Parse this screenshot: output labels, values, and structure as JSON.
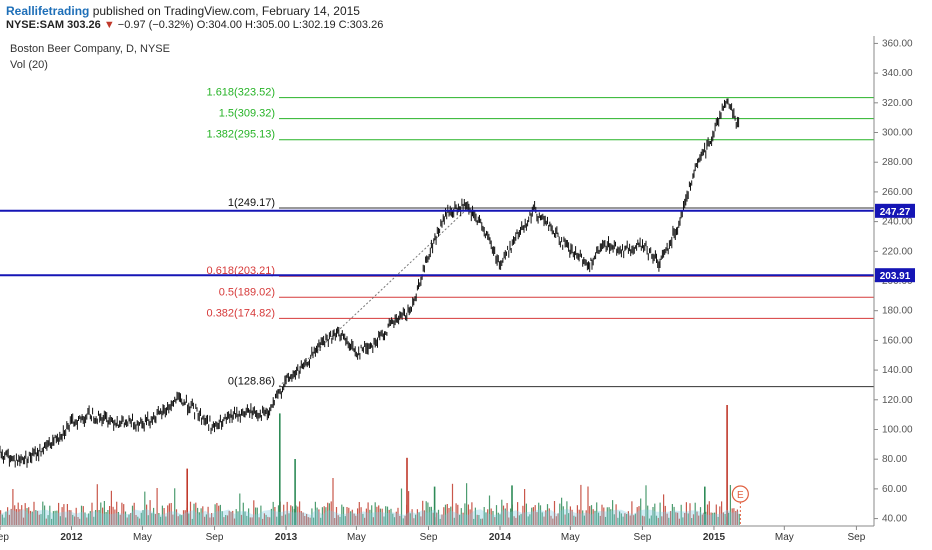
{
  "header": {
    "author": "Reallifetrading",
    "published_text": "published on TradingView.com, February 14, 2015",
    "symbol": "NYSE:SAM",
    "last": "303.26",
    "change": "−0.97 (−0.32%)",
    "ohlc": {
      "open_label": "O:",
      "open": "304.00",
      "high_label": "H:",
      "high": "305.00",
      "low_label": "L:",
      "low": "302.19",
      "close_label": "C:",
      "close": "303.26"
    }
  },
  "legend": {
    "series_title": "Boston Beer Company, D, NYSE",
    "volume_title": "Vol (20)"
  },
  "colors": {
    "fib_green": "#27b327",
    "fib_red": "#d63a3a",
    "fib_black": "#333333",
    "horizontal": "#1515b5",
    "price_tag": "#1515b5",
    "vol_green": "#2e8b57",
    "vol_red": "#c0392b",
    "vol_area": "#7ec8e3",
    "earnings": "#e06040"
  },
  "chart_data": {
    "type": "line",
    "x_type": "date",
    "x_range": [
      "2011-09-01",
      "2015-10-01"
    ],
    "ylim": [
      35,
      365
    ],
    "y_ticks": [
      40,
      60,
      80,
      100,
      120,
      140,
      160,
      180,
      200,
      220,
      240,
      260,
      280,
      300,
      320,
      340,
      360
    ],
    "x_ticks": [
      {
        "date": "2011-09-01",
        "label": "Sep"
      },
      {
        "date": "2012-01-01",
        "label": "2012"
      },
      {
        "date": "2012-05-01",
        "label": "May"
      },
      {
        "date": "2012-09-01",
        "label": "Sep"
      },
      {
        "date": "2013-01-01",
        "label": "2013"
      },
      {
        "date": "2013-05-01",
        "label": "May"
      },
      {
        "date": "2013-09-01",
        "label": "Sep"
      },
      {
        "date": "2014-01-01",
        "label": "2014"
      },
      {
        "date": "2014-05-01",
        "label": "May"
      },
      {
        "date": "2014-09-01",
        "label": "Sep"
      },
      {
        "date": "2015-01-01",
        "label": "2015"
      },
      {
        "date": "2015-05-01",
        "label": "May"
      },
      {
        "date": "2015-09-01",
        "label": "Sep"
      }
    ],
    "price_series": {
      "name": "SAM",
      "points": [
        [
          "2011-09-01",
          84
        ],
        [
          "2011-10-01",
          79
        ],
        [
          "2011-11-01",
          83
        ],
        [
          "2011-12-01",
          92
        ],
        [
          "2012-01-01",
          104
        ],
        [
          "2012-02-01",
          110
        ],
        [
          "2012-03-01",
          107
        ],
        [
          "2012-04-01",
          104
        ],
        [
          "2012-05-01",
          105
        ],
        [
          "2012-06-01",
          110
        ],
        [
          "2012-07-01",
          121
        ],
        [
          "2012-08-01",
          112
        ],
        [
          "2012-09-01",
          101
        ],
        [
          "2012-10-01",
          109
        ],
        [
          "2012-11-01",
          112
        ],
        [
          "2012-12-01",
          110
        ],
        [
          "2013-01-01",
          133
        ],
        [
          "2013-02-01",
          142
        ],
        [
          "2013-03-01",
          158
        ],
        [
          "2013-04-01",
          165
        ],
        [
          "2013-05-01",
          152
        ],
        [
          "2013-06-01",
          158
        ],
        [
          "2013-07-01",
          171
        ],
        [
          "2013-08-01",
          180
        ],
        [
          "2013-09-01",
          218
        ],
        [
          "2013-10-01",
          245
        ],
        [
          "2013-11-01",
          250
        ],
        [
          "2013-12-01",
          238
        ],
        [
          "2014-01-01",
          211
        ],
        [
          "2014-02-01",
          232
        ],
        [
          "2014-03-01",
          248
        ],
        [
          "2014-04-01",
          234
        ],
        [
          "2014-05-01",
          220
        ],
        [
          "2014-06-01",
          211
        ],
        [
          "2014-07-01",
          225
        ],
        [
          "2014-08-01",
          220
        ],
        [
          "2014-09-01",
          224
        ],
        [
          "2014-10-01",
          212
        ],
        [
          "2014-11-01",
          238
        ],
        [
          "2014-12-01",
          276
        ],
        [
          "2015-01-01",
          300
        ],
        [
          "2015-01-20",
          322
        ],
        [
          "2015-02-01",
          315
        ],
        [
          "2015-02-13",
          303
        ]
      ]
    },
    "dashed_trend": {
      "from": [
        "2012-12-20",
        129
      ],
      "to": [
        "2013-11-10",
        250
      ]
    },
    "horizontal_lines": [
      {
        "value": 247.27,
        "label": "247.27"
      },
      {
        "value": 203.91,
        "label": "203.91"
      }
    ],
    "fib_levels": [
      {
        "ratio_label": "1.618(323.52)",
        "value": 323.52,
        "color": "green"
      },
      {
        "ratio_label": "1.5(309.32)",
        "value": 309.32,
        "color": "green"
      },
      {
        "ratio_label": "1.382(295.13)",
        "value": 295.13,
        "color": "green"
      },
      {
        "ratio_label": "1(249.17)",
        "value": 249.17,
        "color": "black"
      },
      {
        "ratio_label": "0.618(203.21)",
        "value": 203.21,
        "color": "red"
      },
      {
        "ratio_label": "0.5(189.02)",
        "value": 189.02,
        "color": "red"
      },
      {
        "ratio_label": "0.382(174.82)",
        "value": 174.82,
        "color": "red"
      },
      {
        "ratio_label": "0(128.86)",
        "value": 128.86,
        "color": "black"
      }
    ],
    "volume_spikes": [
      {
        "date": "2012-07-15",
        "level": 0.47,
        "color": "red"
      },
      {
        "date": "2012-12-20",
        "level": 0.93,
        "color": "green"
      },
      {
        "date": "2013-01-15",
        "level": 0.55,
        "color": "green"
      },
      {
        "date": "2013-07-25",
        "level": 0.56,
        "color": "red"
      },
      {
        "date": "2013-09-10",
        "level": 0.32,
        "color": "green"
      },
      {
        "date": "2014-01-20",
        "level": 0.33,
        "color": "green"
      },
      {
        "date": "2014-12-15",
        "level": 0.32,
        "color": "green"
      },
      {
        "date": "2015-01-22",
        "level": 1.0,
        "color": "red"
      }
    ],
    "earnings_marker": {
      "date": "2015-02-15",
      "label": "E"
    }
  }
}
